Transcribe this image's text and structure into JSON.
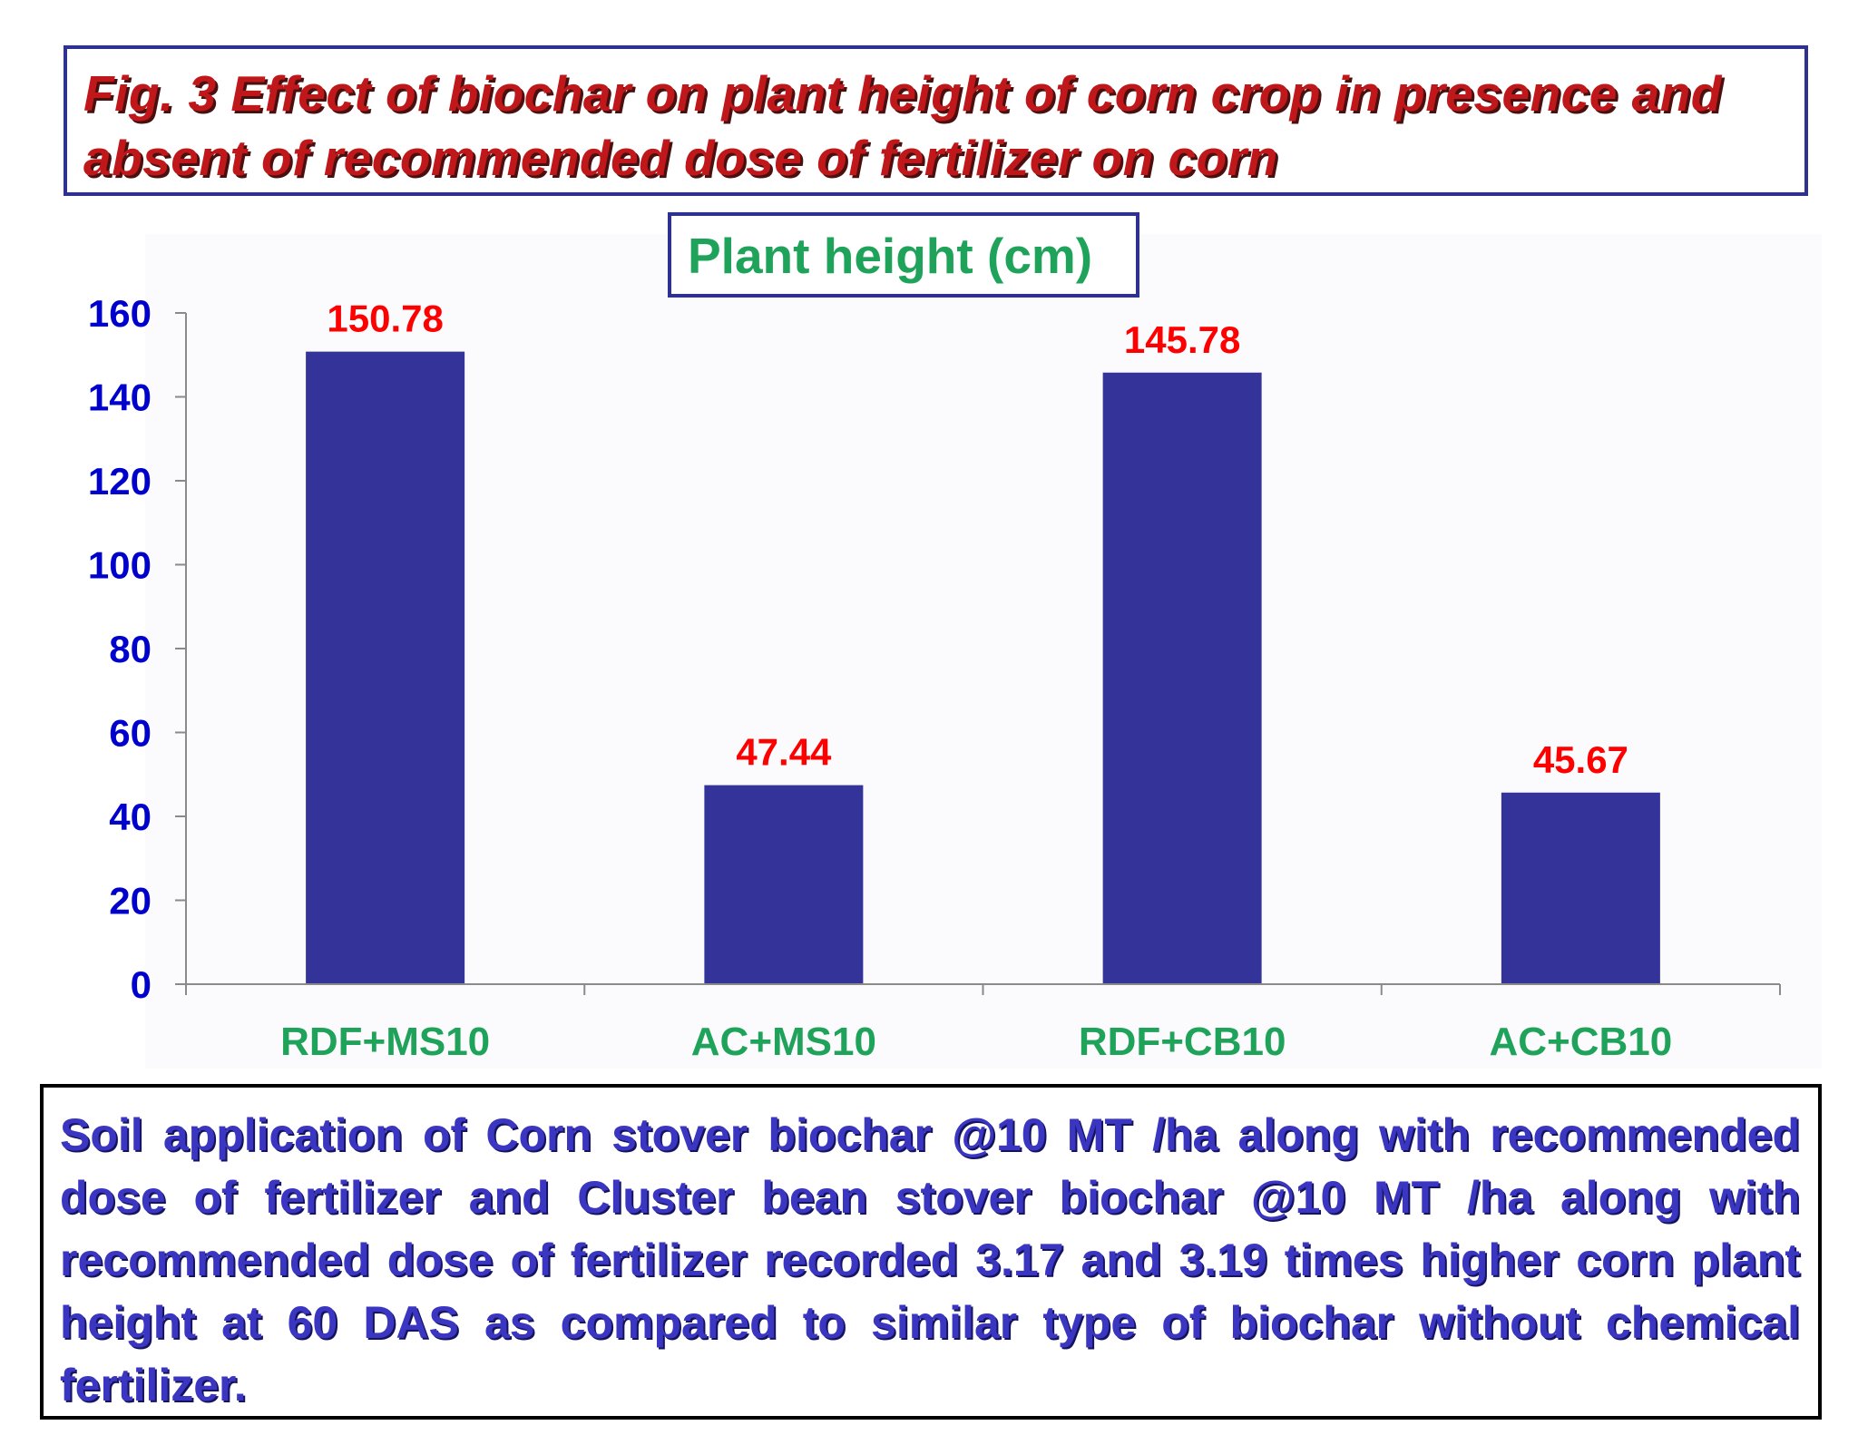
{
  "figure": {
    "title": "Fig. 3 Effect of biochar on plant height of corn crop in presence and absent of recommended dose of fertilizer on  corn",
    "description": "Soil application of Corn stover biochar @10 MT /ha along with recommended dose of fertilizer and Cluster bean stover biochar @10 MT /ha along with recommended dose of fertilizer recorded  3.17 and 3.19 times higher corn plant height at  60 DAS as compared to  similar type of biochar without chemical fertilizer."
  },
  "colors": {
    "bar": "#333399",
    "data_label": "#ff0000",
    "y_tick": "#0000cc",
    "x_category": "#1fa35a",
    "title_red": "#c0171b",
    "frame_blue": "#2e3192",
    "description_text": "#3a36c2"
  },
  "chart_data": {
    "type": "bar",
    "title": "Plant height (cm)",
    "categories": [
      "RDF+MS10",
      "AC+MS10",
      "RDF+CB10",
      "AC+CB10"
    ],
    "values": [
      150.78,
      47.44,
      145.78,
      45.67
    ],
    "data_labels": [
      "150.78",
      "47.44",
      "145.78",
      "45.67"
    ],
    "y_ticks": [
      "0",
      "20",
      "40",
      "60",
      "80",
      "100",
      "120",
      "140",
      "160"
    ],
    "ylim": [
      0,
      160
    ],
    "xlabel": "",
    "ylabel": "",
    "grid": false,
    "legend": "none"
  }
}
